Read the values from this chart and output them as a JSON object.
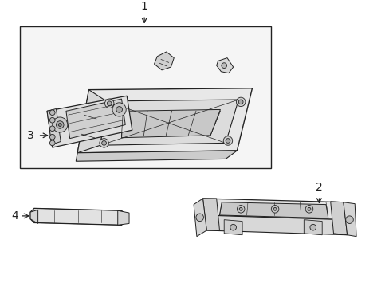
{
  "background_color": "#ffffff",
  "box_bg": "#f5f5f5",
  "lc": "#222222",
  "label_fontsize": 10,
  "labels": [
    "1",
    "2",
    "3",
    "4"
  ]
}
